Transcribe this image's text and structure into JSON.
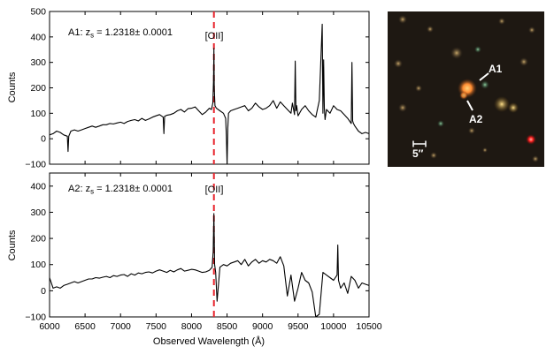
{
  "chart_data": [
    {
      "type": "line",
      "panel": "top",
      "title": "",
      "xlabel": "",
      "ylabel": "Counts",
      "xlim": [
        6000,
        10500
      ],
      "ylim": [
        -100,
        500
      ],
      "yticks": [
        "−100",
        "0",
        "100",
        "200",
        "300",
        "400",
        "500"
      ],
      "redshift_label": {
        "prefix": "A1: z",
        "sub": "s",
        "value": " = 1.2318± 0.0001"
      },
      "line_label": "[OII]",
      "line_marker_wavelength": 8315,
      "series": [
        {
          "name": "A1 spectrum",
          "x": [
            6000,
            6050,
            6100,
            6150,
            6200,
            6250,
            6260,
            6270,
            6300,
            6350,
            6400,
            6450,
            6500,
            6550,
            6600,
            6650,
            6700,
            6750,
            6800,
            6850,
            6900,
            6950,
            7000,
            7050,
            7100,
            7150,
            7200,
            7250,
            7300,
            7350,
            7400,
            7450,
            7500,
            7550,
            7600,
            7610,
            7620,
            7650,
            7700,
            7750,
            7800,
            7850,
            7900,
            7950,
            8000,
            8050,
            8100,
            8150,
            8200,
            8250,
            8280,
            8300,
            8310,
            8315,
            8320,
            8330,
            8350,
            8400,
            8450,
            8480,
            8490,
            8500,
            8510,
            8520,
            8550,
            8600,
            8650,
            8700,
            8750,
            8800,
            8850,
            8900,
            8950,
            9000,
            9050,
            9100,
            9150,
            9200,
            9250,
            9300,
            9350,
            9400,
            9420,
            9450,
            9460,
            9470,
            9480,
            9500,
            9550,
            9600,
            9650,
            9700,
            9750,
            9800,
            9840,
            9850,
            9860,
            9870,
            9880,
            9900,
            9950,
            10000,
            10050,
            10100,
            10150,
            10200,
            10250,
            10260,
            10270,
            10280,
            10300,
            10350,
            10400,
            10450,
            10500
          ],
          "values": [
            15,
            20,
            30,
            25,
            15,
            10,
            -50,
            10,
            30,
            35,
            30,
            35,
            40,
            45,
            50,
            45,
            50,
            55,
            55,
            60,
            58,
            62,
            65,
            60,
            68,
            72,
            75,
            70,
            80,
            72,
            78,
            85,
            90,
            95,
            85,
            20,
            88,
            92,
            95,
            100,
            110,
            115,
            105,
            118,
            120,
            125,
            110,
            95,
            105,
            120,
            115,
            140,
            230,
            355,
            200,
            130,
            120,
            110,
            100,
            80,
            10,
            -110,
            40,
            100,
            110,
            115,
            120,
            125,
            130,
            110,
            120,
            140,
            125,
            115,
            120,
            130,
            150,
            120,
            145,
            130,
            115,
            100,
            140,
            95,
            305,
            110,
            130,
            90,
            115,
            130,
            110,
            95,
            85,
            150,
            450,
            100,
            310,
            120,
            75,
            115,
            100,
            130,
            115,
            110,
            95,
            80,
            60,
            300,
            70,
            60,
            50,
            30,
            20,
            25,
            20
          ]
        }
      ]
    },
    {
      "type": "line",
      "panel": "bottom",
      "title": "",
      "xlabel": "Observed Wavelength (Å)",
      "ylabel": "Counts",
      "xlim": [
        6000,
        10500
      ],
      "ylim": [
        -100,
        450
      ],
      "yticks": [
        "−100",
        "0",
        "100",
        "200",
        "300",
        "400"
      ],
      "xticks": [
        "6000",
        "6500",
        "7000",
        "7500",
        "8000",
        "8500",
        "9000",
        "9500",
        "10000",
        "10500"
      ],
      "redshift_label": {
        "prefix": "A2: z",
        "sub": "s",
        "value": " = 1.2318± 0.0001"
      },
      "line_label": "[OII]",
      "line_marker_wavelength": 8315,
      "series": [
        {
          "name": "A2 spectrum",
          "x": [
            6000,
            6050,
            6100,
            6150,
            6200,
            6250,
            6300,
            6350,
            6400,
            6450,
            6500,
            6550,
            6600,
            6650,
            6700,
            6750,
            6800,
            6850,
            6900,
            6950,
            7000,
            7050,
            7100,
            7150,
            7200,
            7250,
            7300,
            7350,
            7400,
            7450,
            7500,
            7550,
            7600,
            7650,
            7700,
            7750,
            7800,
            7850,
            7900,
            7950,
            8000,
            8050,
            8100,
            8150,
            8200,
            8250,
            8290,
            8305,
            8315,
            8325,
            8340,
            8360,
            8400,
            8450,
            8500,
            8550,
            8600,
            8650,
            8700,
            8750,
            8800,
            8850,
            8900,
            8950,
            9000,
            9050,
            9100,
            9150,
            9200,
            9250,
            9300,
            9350,
            9400,
            9450,
            9500,
            9550,
            9600,
            9650,
            9700,
            9750,
            9800,
            9850,
            9900,
            9950,
            10000,
            10050,
            10060,
            10070,
            10100,
            10150,
            10200,
            10250,
            10300,
            10350,
            10400,
            10450,
            10500
          ],
          "values": [
            50,
            10,
            15,
            10,
            20,
            25,
            30,
            35,
            30,
            35,
            40,
            45,
            45,
            50,
            48,
            52,
            55,
            50,
            58,
            55,
            60,
            62,
            55,
            65,
            60,
            68,
            65,
            70,
            72,
            68,
            75,
            80,
            75,
            70,
            78,
            72,
            80,
            85,
            75,
            78,
            82,
            80,
            75,
            70,
            72,
            78,
            90,
            150,
            295,
            100,
            70,
            -40,
            90,
            100,
            95,
            105,
            110,
            115,
            100,
            120,
            95,
            110,
            120,
            105,
            115,
            110,
            120,
            115,
            105,
            130,
            95,
            -20,
            60,
            -40,
            10,
            70,
            40,
            30,
            -5,
            -100,
            -90,
            70,
            60,
            50,
            40,
            60,
            175,
            40,
            10,
            30,
            -10,
            55,
            40,
            10,
            30,
            25,
            20
          ]
        }
      ]
    }
  ],
  "image_panel": {
    "labels": {
      "a1": "A1",
      "a2": "A2"
    },
    "scale_label": "5″",
    "colors": {
      "background": "#1e1812",
      "galaxy": "#ff8a30",
      "bright_red": "#ff2020",
      "marker": "#ffffff"
    }
  },
  "colors": {
    "spectrum": "#000000",
    "marker_line": "#e8252d",
    "axes": "#000000"
  }
}
